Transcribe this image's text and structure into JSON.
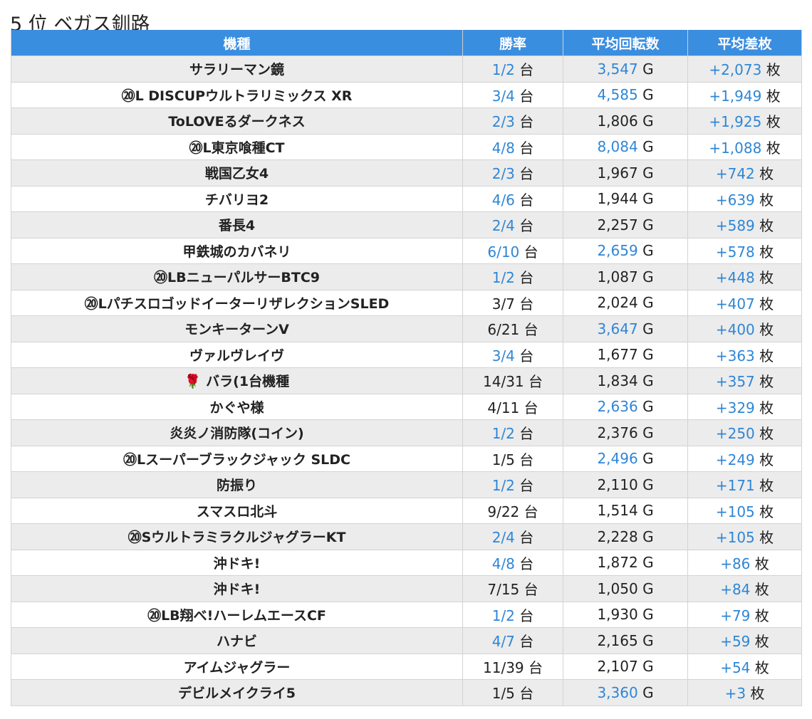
{
  "page": {
    "title": "5 位 ベガス釧路"
  },
  "colors": {
    "header_bg": "#3a8ee0",
    "highlight_text": "#2f86d6",
    "stripe": "#ececec"
  },
  "table": {
    "headers": [
      "機種",
      "勝率",
      "平均回転数",
      "平均差枚"
    ],
    "units": {
      "win": "台",
      "spins": "G",
      "diff": "枚"
    },
    "rows": [
      {
        "name": "サラリーマン鏡",
        "win": "1/2",
        "win_hl": true,
        "spins": "3,547",
        "spins_hl": true,
        "diff": "+2,073"
      },
      {
        "name": "⑳L DISCUPウルトラリミックス XR",
        "win": "3/4",
        "win_hl": true,
        "spins": "4,585",
        "spins_hl": true,
        "diff": "+1,949"
      },
      {
        "name": "ToLOVEるダークネス",
        "win": "2/3",
        "win_hl": true,
        "spins": "1,806",
        "spins_hl": false,
        "diff": "+1,925"
      },
      {
        "name": "⑳L東京喰種CT",
        "win": "4/8",
        "win_hl": true,
        "spins": "8,084",
        "spins_hl": true,
        "diff": "+1,088"
      },
      {
        "name": "戦国乙女4",
        "win": "2/3",
        "win_hl": true,
        "spins": "1,967",
        "spins_hl": false,
        "diff": "+742"
      },
      {
        "name": "チバリヨ2",
        "win": "4/6",
        "win_hl": true,
        "spins": "1,944",
        "spins_hl": false,
        "diff": "+639"
      },
      {
        "name": "番長4",
        "win": "2/4",
        "win_hl": true,
        "spins": "2,257",
        "spins_hl": false,
        "diff": "+589"
      },
      {
        "name": "甲鉄城のカバネリ",
        "win": "6/10",
        "win_hl": true,
        "spins": "2,659",
        "spins_hl": true,
        "diff": "+578"
      },
      {
        "name": "⑳LBニューパルサーBTC9",
        "win": "1/2",
        "win_hl": true,
        "spins": "1,087",
        "spins_hl": false,
        "diff": "+448"
      },
      {
        "name": "⑳LパチスロゴッドイーターリザレクションSLED",
        "win": "3/7",
        "win_hl": false,
        "spins": "2,024",
        "spins_hl": false,
        "diff": "+407"
      },
      {
        "name": "モンキーターンV",
        "win": "6/21",
        "win_hl": false,
        "spins": "3,647",
        "spins_hl": true,
        "diff": "+400"
      },
      {
        "name": "ヴァルヴレイヴ",
        "win": "3/4",
        "win_hl": true,
        "spins": "1,677",
        "spins_hl": false,
        "diff": "+363"
      },
      {
        "name": "🌹 バラ(1台機種",
        "win": "14/31",
        "win_hl": false,
        "spins": "1,834",
        "spins_hl": false,
        "diff": "+357"
      },
      {
        "name": "かぐや様",
        "win": "4/11",
        "win_hl": false,
        "spins": "2,636",
        "spins_hl": true,
        "diff": "+329"
      },
      {
        "name": "炎炎ノ消防隊(コイン)",
        "win": "1/2",
        "win_hl": true,
        "spins": "2,376",
        "spins_hl": false,
        "diff": "+250"
      },
      {
        "name": "⑳Lスーパーブラックジャック SLDC",
        "win": "1/5",
        "win_hl": false,
        "spins": "2,496",
        "spins_hl": true,
        "diff": "+249"
      },
      {
        "name": "防振り",
        "win": "1/2",
        "win_hl": true,
        "spins": "2,110",
        "spins_hl": false,
        "diff": "+171"
      },
      {
        "name": "スマスロ北斗",
        "win": "9/22",
        "win_hl": false,
        "spins": "1,514",
        "spins_hl": false,
        "diff": "+105"
      },
      {
        "name": "⑳SウルトラミラクルジャグラーKT",
        "win": "2/4",
        "win_hl": true,
        "spins": "2,228",
        "spins_hl": false,
        "diff": "+105"
      },
      {
        "name": "沖ドキ!",
        "win": "4/8",
        "win_hl": true,
        "spins": "1,872",
        "spins_hl": false,
        "diff": "+86"
      },
      {
        "name": "沖ドキ!",
        "win": "7/15",
        "win_hl": false,
        "spins": "1,050",
        "spins_hl": false,
        "diff": "+84"
      },
      {
        "name": "⑳LB翔べ!ハーレムエースCF",
        "win": "1/2",
        "win_hl": true,
        "spins": "1,930",
        "spins_hl": false,
        "diff": "+79"
      },
      {
        "name": "ハナビ",
        "win": "4/7",
        "win_hl": true,
        "spins": "2,165",
        "spins_hl": false,
        "diff": "+59"
      },
      {
        "name": "アイムジャグラー",
        "win": "11/39",
        "win_hl": false,
        "spins": "2,107",
        "spins_hl": false,
        "diff": "+54"
      },
      {
        "name": "デビルメイクライ5",
        "win": "1/5",
        "win_hl": false,
        "spins": "3,360",
        "spins_hl": true,
        "diff": "+3"
      }
    ]
  }
}
